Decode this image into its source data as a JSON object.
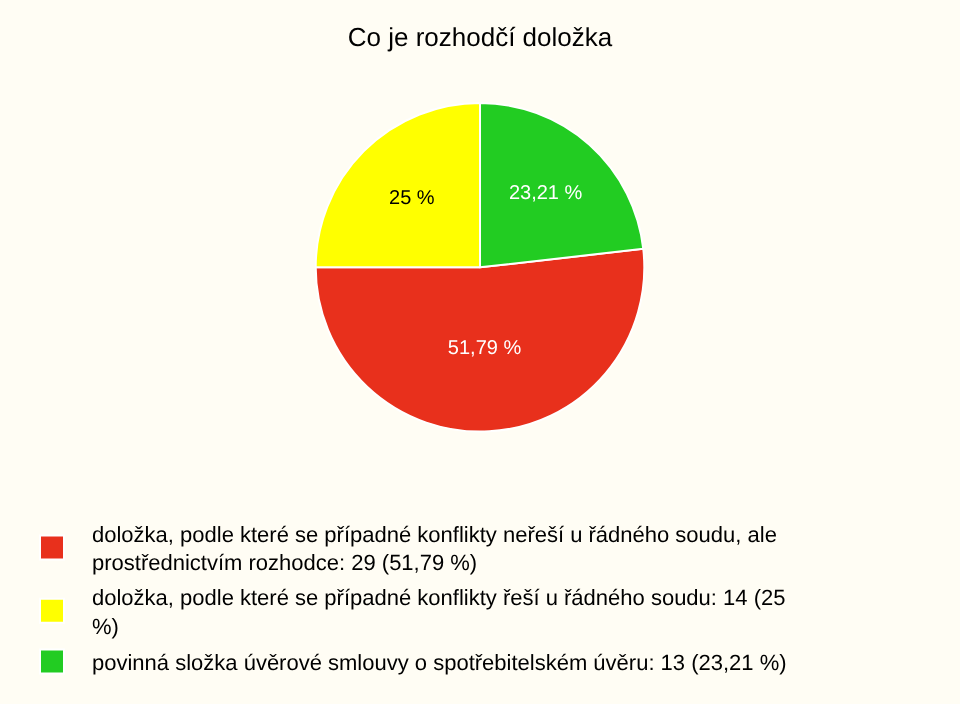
{
  "chart_data": {
    "type": "pie",
    "title": "Co je rozhodčí doložka",
    "categories": [
      "doložka, podle které se případné konflikty neřeší u řádného soudu, ale prostřednictvím rozhodce: 29 (51,79 %)",
      "doložka, podle které se případné konflikty řeší u řádného soudu: 14 (25 %)",
      "povinná složka úvěrové smlouvy o spotřebitelském úvěru: 13 (23,21 %)"
    ],
    "values": [
      51.79,
      25,
      23.21
    ],
    "value_labels": [
      "51,79 %",
      "25 %",
      "23,21 %"
    ],
    "colors": [
      "#e8301c",
      "#ffff00",
      "#22cc22"
    ],
    "legend": "bottom"
  }
}
